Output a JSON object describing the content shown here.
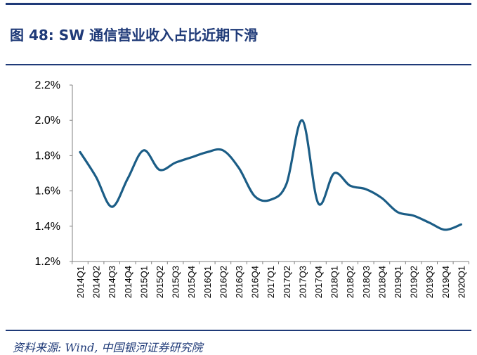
{
  "header": {
    "title": "图 48:  SW 通信营业收入占比近期下滑"
  },
  "footer": {
    "source": "资料来源: Wind, 中国银河证券研究院"
  },
  "chart_data": {
    "type": "line",
    "title": "",
    "xlabel": "",
    "ylabel": "",
    "ylim": [
      1.2,
      2.2
    ],
    "yticks": [
      "1.2%",
      "1.4%",
      "1.6%",
      "1.8%",
      "2.0%",
      "2.2%"
    ],
    "ytick_values": [
      1.2,
      1.4,
      1.6,
      1.8,
      2.0,
      2.2
    ],
    "grid": false,
    "line_color": "#1b5d86",
    "categories": [
      "2014Q1",
      "2014Q2",
      "2014Q3",
      "2014Q4",
      "2015Q1",
      "2015Q2",
      "2015Q3",
      "2015Q4",
      "2016Q1",
      "2016Q2",
      "2016Q3",
      "2016Q4",
      "2017Q1",
      "2017Q2",
      "2017Q3",
      "2017Q4",
      "2018Q1",
      "2018Q2",
      "2018Q3",
      "2018Q4",
      "2019Q1",
      "2019Q2",
      "2019Q3",
      "2019Q4",
      "2020Q1"
    ],
    "series": [
      {
        "values": [
          1.82,
          1.68,
          1.51,
          1.67,
          1.83,
          1.72,
          1.76,
          1.79,
          1.82,
          1.83,
          1.73,
          1.57,
          1.55,
          1.64,
          2.0,
          1.53,
          1.7,
          1.63,
          1.61,
          1.56,
          1.48,
          1.46,
          1.42,
          1.38,
          1.41
        ]
      }
    ]
  }
}
